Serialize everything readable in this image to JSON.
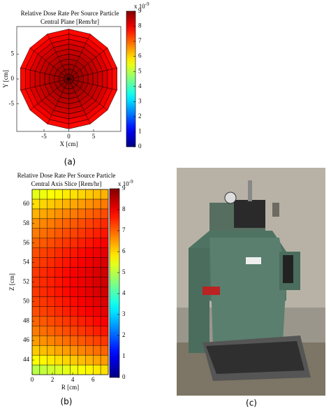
{
  "panel_labels": [
    "(a)",
    "(b)",
    "(c)"
  ],
  "chart_data": [
    {
      "type": "polar_heatmap",
      "title": [
        "Relative Dose Rate Per Source Particle",
        "Central Plane [Rem/hr]"
      ],
      "x_label": "X [cm]",
      "y_label": "Y [cm]",
      "xlim": [
        -10.5,
        10.5
      ],
      "ylim": [
        -10.5,
        10.5
      ],
      "xticks": [
        -5,
        0,
        5
      ],
      "yticks": [
        -5,
        0,
        5
      ],
      "r_edges": [
        0,
        1,
        2,
        3,
        4,
        5,
        6,
        7,
        8,
        9,
        10
      ],
      "sectors": 14,
      "values": [
        8.9,
        8.8,
        8.7,
        8.6,
        8.5,
        8.4,
        8.3,
        8.2,
        8.0,
        7.8
      ],
      "clim": [
        0,
        9
      ],
      "cticks": [
        0,
        1,
        2,
        3,
        4,
        5,
        6,
        7,
        8,
        9
      ],
      "colorbar_label": "x 10",
      "colorbar_exponent": "-9"
    },
    {
      "type": "heatmap",
      "title": [
        "Relative Dose Rate Per Source Particle",
        "Central Axis Slice [Rem/hr]"
      ],
      "x_label": "R [cm]",
      "y_label": "Z [cm]",
      "xlim": [
        0,
        7.5
      ],
      "ylim": [
        42.5,
        61.5
      ],
      "xticks": [
        0,
        2,
        4,
        6
      ],
      "yticks": [
        44,
        46,
        48,
        50,
        52,
        54,
        56,
        58,
        60
      ],
      "x_edges": [
        0,
        0.75,
        1.5,
        2.25,
        3,
        3.75,
        4.5,
        5.25,
        6,
        6.75,
        7.5
      ],
      "y_edges": [
        42.5,
        43.5,
        44.5,
        45.5,
        46.5,
        47.5,
        48.5,
        49.5,
        50.5,
        51.5,
        52.5,
        53.5,
        54.5,
        55.5,
        56.5,
        57.5,
        58.5,
        59.5,
        60.5,
        61.5
      ],
      "z": [
        [
          5.0,
          5.1,
          5.2,
          5.3,
          5.4,
          5.5,
          5.6,
          5.7,
          5.8,
          5.9
        ],
        [
          5.6,
          5.7,
          5.8,
          5.9,
          6.0,
          6.1,
          6.2,
          6.3,
          6.4,
          6.5
        ],
        [
          6.1,
          6.2,
          6.3,
          6.4,
          6.5,
          6.6,
          6.7,
          6.8,
          6.9,
          7.0
        ],
        [
          6.5,
          6.6,
          6.7,
          6.8,
          6.9,
          7.0,
          7.1,
          7.2,
          7.3,
          7.4
        ],
        [
          6.8,
          6.9,
          7.0,
          7.1,
          7.2,
          7.3,
          7.4,
          7.5,
          7.6,
          7.7
        ],
        [
          7.0,
          7.1,
          7.2,
          7.3,
          7.4,
          7.5,
          7.6,
          7.7,
          7.8,
          7.9
        ],
        [
          7.2,
          7.3,
          7.4,
          7.5,
          7.6,
          7.7,
          7.8,
          7.9,
          8.0,
          8.1
        ],
        [
          7.3,
          7.4,
          7.5,
          7.6,
          7.7,
          7.8,
          7.9,
          8.0,
          8.1,
          8.2
        ],
        [
          7.4,
          7.5,
          7.6,
          7.7,
          7.8,
          7.9,
          8.0,
          8.1,
          8.2,
          8.3
        ],
        [
          7.4,
          7.5,
          7.6,
          7.7,
          7.8,
          7.9,
          8.0,
          8.1,
          8.2,
          8.3
        ],
        [
          7.4,
          7.5,
          7.6,
          7.7,
          7.8,
          7.9,
          8.0,
          8.1,
          8.2,
          8.3
        ],
        [
          7.3,
          7.4,
          7.5,
          7.6,
          7.7,
          7.8,
          7.9,
          8.0,
          8.1,
          8.2
        ],
        [
          7.2,
          7.3,
          7.4,
          7.5,
          7.6,
          7.7,
          7.8,
          7.9,
          8.0,
          8.1
        ],
        [
          7.0,
          7.1,
          7.2,
          7.3,
          7.4,
          7.5,
          7.6,
          7.7,
          7.8,
          7.9
        ],
        [
          6.8,
          6.9,
          7.0,
          7.1,
          7.2,
          7.3,
          7.4,
          7.5,
          7.6,
          7.7
        ],
        [
          6.6,
          6.7,
          6.8,
          6.9,
          7.0,
          7.1,
          7.2,
          7.3,
          7.4,
          7.5
        ],
        [
          6.3,
          6.4,
          6.5,
          6.6,
          6.7,
          6.8,
          6.9,
          7.0,
          7.1,
          7.2
        ],
        [
          5.9,
          6.0,
          6.1,
          6.2,
          6.3,
          6.4,
          6.5,
          6.6,
          6.7,
          6.8
        ],
        [
          5.4,
          5.5,
          5.6,
          5.7,
          5.8,
          5.9,
          6.0,
          6.1,
          6.2,
          6.3
        ]
      ],
      "clim": [
        0,
        9
      ],
      "cticks": [
        0,
        1,
        2,
        3,
        4,
        5,
        6,
        7,
        8,
        9
      ],
      "colorbar_label": "x 10",
      "colorbar_exponent": "-9"
    }
  ]
}
